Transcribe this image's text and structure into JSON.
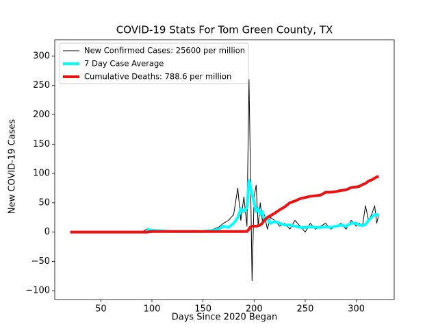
{
  "chart_data": {
    "type": "line",
    "title": "COVID-19 Stats For Tom Green County, TX",
    "x_label": "Days Since 2020 Began",
    "y_label": "New COVID-19 Cases",
    "x": [
      20,
      40,
      60,
      80,
      90,
      95,
      100,
      110,
      120,
      130,
      140,
      150,
      160,
      165,
      170,
      175,
      180,
      184,
      187,
      190,
      193,
      195,
      196,
      198,
      200,
      202,
      204,
      206,
      208,
      210,
      213,
      216,
      220,
      225,
      230,
      235,
      240,
      245,
      250,
      255,
      260,
      265,
      270,
      275,
      280,
      285,
      290,
      295,
      300,
      303,
      306,
      309,
      312,
      315,
      318,
      320,
      322
    ],
    "series": [
      {
        "name": "New Confirmed Cases: 25600 per million",
        "color": "#000000",
        "width": 1,
        "values": [
          0,
          0,
          0,
          0,
          0,
          5,
          2,
          1,
          0,
          1,
          0,
          0,
          5,
          8,
          15,
          20,
          30,
          75,
          20,
          60,
          10,
          260,
          150,
          -83,
          60,
          80,
          10,
          50,
          20,
          30,
          5,
          25,
          20,
          10,
          15,
          5,
          20,
          10,
          0,
          15,
          5,
          10,
          15,
          5,
          10,
          15,
          5,
          20,
          10,
          15,
          10,
          45,
          20,
          30,
          45,
          15,
          30
        ]
      },
      {
        "name": "7 Day Case Average",
        "color": "#00ffff",
        "width": 4,
        "values": [
          null,
          null,
          null,
          null,
          null,
          5,
          3,
          2,
          1,
          1,
          1,
          1,
          3,
          5,
          10,
          8,
          15,
          25,
          40,
          35,
          42,
          88,
          80,
          65,
          50,
          35,
          40,
          30,
          35,
          20,
          22,
          15,
          18,
          15,
          12,
          12,
          10,
          8,
          8,
          9,
          8,
          8,
          9,
          8,
          10,
          12,
          10,
          15,
          15,
          12,
          11,
          13,
          20,
          25,
          30,
          30,
          28
        ]
      },
      {
        "name": "Cumulative Deaths: 788.6 per million",
        "color": "#ee1111",
        "width": 4,
        "values": [
          0,
          0,
          0,
          0,
          0,
          0,
          1,
          1,
          1,
          1,
          1,
          1,
          1,
          1,
          1,
          1,
          1,
          1,
          1,
          1,
          1,
          5,
          8,
          10,
          10,
          10,
          11,
          12,
          15,
          20,
          25,
          28,
          32,
          38,
          43,
          50,
          53,
          57,
          59,
          61,
          62,
          63,
          68,
          68,
          69,
          71,
          72,
          76,
          77,
          78,
          81,
          83,
          87,
          89,
          92,
          94,
          95
        ]
      }
    ],
    "xlim": [
      4.9,
      337.1
    ],
    "ylim": [
      -115,
      328
    ],
    "xticks": [
      50,
      100,
      150,
      200,
      250,
      300
    ],
    "yticks": [
      {
        "value": -100,
        "label": "−100"
      },
      {
        "value": -50,
        "label": "−50"
      },
      0,
      50,
      100,
      150,
      200,
      250,
      300
    ],
    "legend": "upper left"
  }
}
